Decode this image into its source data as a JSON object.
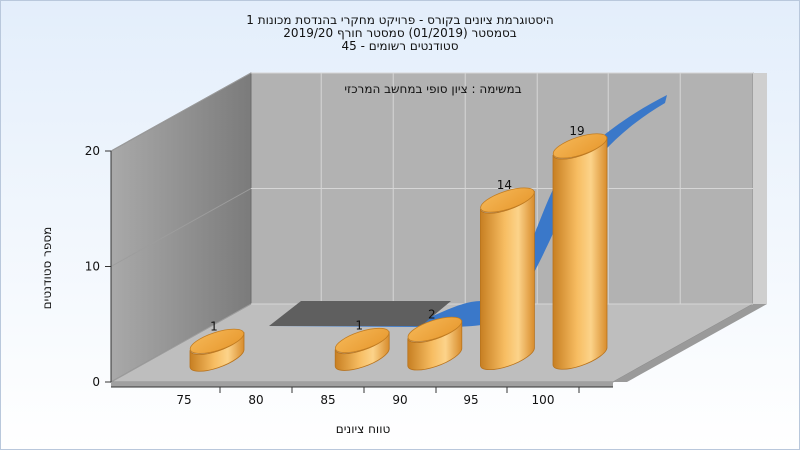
{
  "chart_data": {
    "type": "bar",
    "title_lines": [
      "היסטוגרמת ציונים בקורס - פרויקט מחקרי בהנדסת מכונות 1",
      "בסמסטר  (01/2019)  סמסטר חורף 2019/20",
      "סטודנטים רשומים - 45"
    ],
    "subtitle": "במשימה : ציון סופי במחשב המרכזי",
    "xlabel": "טווח ציונים",
    "ylabel": "מספר סטודנטים",
    "x_ticks": [
      75,
      80,
      85,
      90,
      95,
      100
    ],
    "y_ticks": [
      0,
      10,
      20
    ],
    "ylim": [
      0,
      20
    ],
    "categories": [
      "75",
      "80",
      "85",
      "90",
      "95",
      "100"
    ],
    "values": [
      1,
      0,
      1,
      2,
      14,
      19
    ],
    "bar_color": "#e9a23b",
    "curve_color": "#3a78c9"
  }
}
